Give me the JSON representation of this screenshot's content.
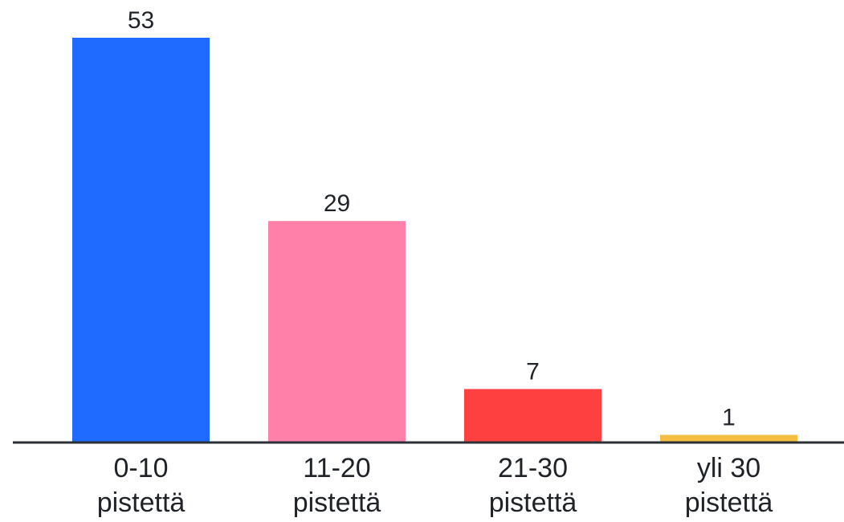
{
  "chart_data": {
    "type": "bar",
    "categories": [
      [
        "0-10",
        "pistettä"
      ],
      [
        "11-20",
        "pistettä"
      ],
      [
        "21-30",
        "pistettä"
      ],
      [
        "yli 30",
        "pistettä"
      ]
    ],
    "values": [
      53,
      29,
      7,
      1
    ],
    "colors": [
      "#1f6bff",
      "#ff80a8",
      "#ff4040",
      "#f5bd42"
    ],
    "axis_color": "#2b2f36",
    "ylim": [
      0,
      53
    ],
    "grid": false,
    "legend": "none"
  }
}
